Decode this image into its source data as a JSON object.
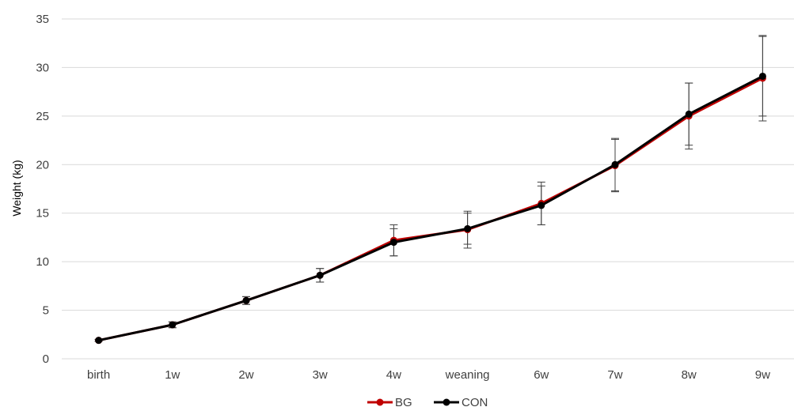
{
  "chart_data": {
    "type": "line",
    "title": "",
    "xlabel": "",
    "ylabel": "Weight (kg)",
    "categories": [
      "birth",
      "1w",
      "2w",
      "3w",
      "4w",
      "weaning",
      "6w",
      "7w",
      "8w",
      "9w"
    ],
    "ylim": [
      0,
      35
    ],
    "yticks": [
      0,
      5,
      10,
      15,
      20,
      25,
      30,
      35
    ],
    "grid": true,
    "legend_position": "bottom",
    "series": [
      {
        "name": "BG",
        "color": "#c00000",
        "values": [
          1.9,
          3.5,
          6.0,
          8.6,
          12.2,
          13.3,
          16.0,
          19.9,
          25.0,
          28.9
        ],
        "errors": [
          0.1,
          0.3,
          0.4,
          0.7,
          1.6,
          1.9,
          2.2,
          2.7,
          3.4,
          4.4
        ]
      },
      {
        "name": "CON",
        "color": "#000000",
        "values": [
          1.9,
          3.5,
          6.0,
          8.6,
          12.0,
          13.4,
          15.8,
          20.0,
          25.2,
          29.1
        ],
        "errors": [
          0.1,
          0.3,
          0.4,
          0.7,
          1.4,
          1.6,
          2.0,
          2.7,
          3.2,
          4.1
        ]
      }
    ]
  }
}
